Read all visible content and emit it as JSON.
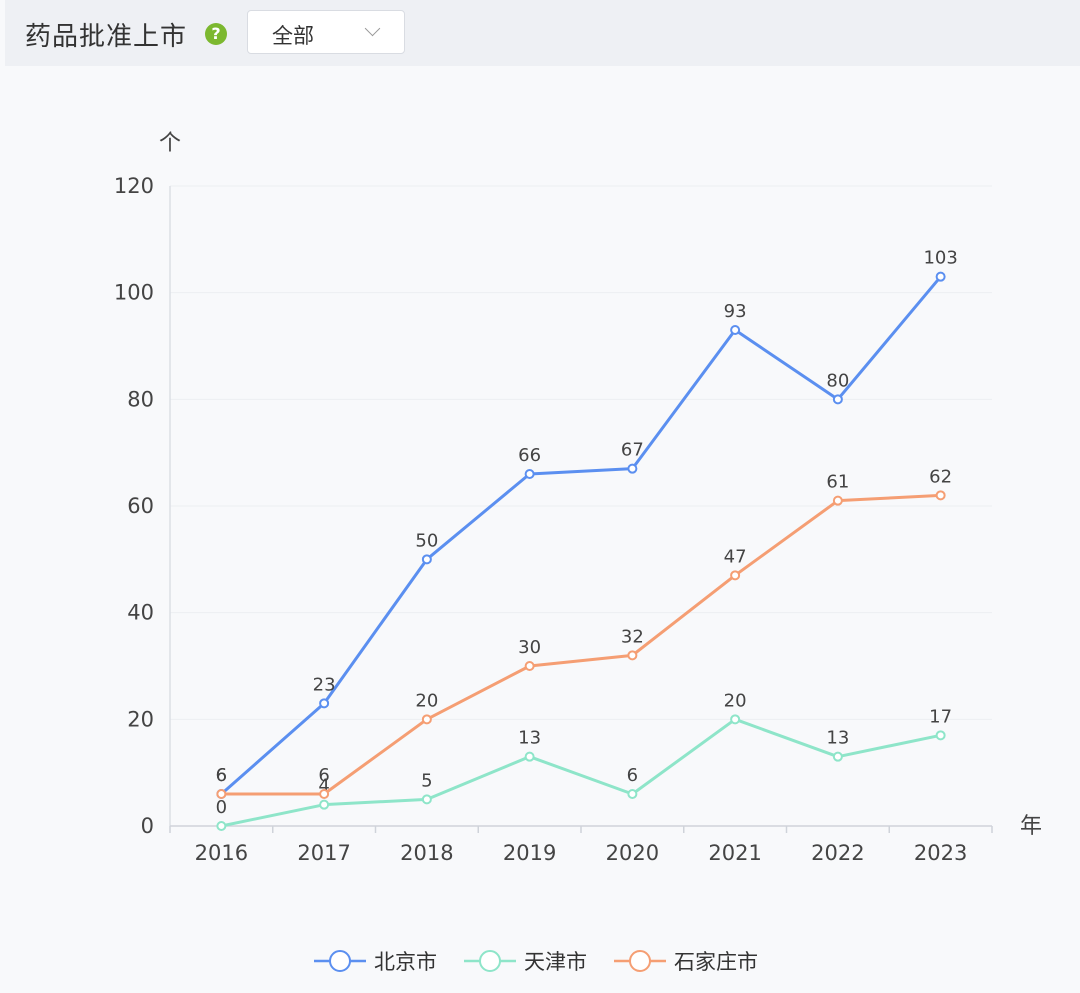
{
  "header": {
    "title": "药品批准上市",
    "help_icon": "question-circle-icon",
    "help_text": "?",
    "filter": {
      "selected": "全部"
    }
  },
  "chart_data": {
    "type": "line",
    "title": "",
    "xlabel": "年",
    "ylabel": "个",
    "categories": [
      "2016",
      "2017",
      "2018",
      "2019",
      "2020",
      "2021",
      "2022",
      "2023"
    ],
    "ylim": [
      0,
      120
    ],
    "yticks": [
      0,
      20,
      40,
      60,
      80,
      100,
      120
    ],
    "grid": true,
    "legend": "bottom-center",
    "series": [
      {
        "name": "北京市",
        "color": "#5b8ff0",
        "values": [
          6,
          23,
          50,
          66,
          67,
          93,
          80,
          103
        ]
      },
      {
        "name": "天津市",
        "color": "#8ee5c9",
        "values": [
          0,
          4,
          5,
          13,
          6,
          20,
          13,
          17
        ]
      },
      {
        "name": "石家庄市",
        "color": "#f59e73",
        "values": [
          6,
          6,
          20,
          30,
          32,
          47,
          61,
          62
        ]
      }
    ]
  }
}
